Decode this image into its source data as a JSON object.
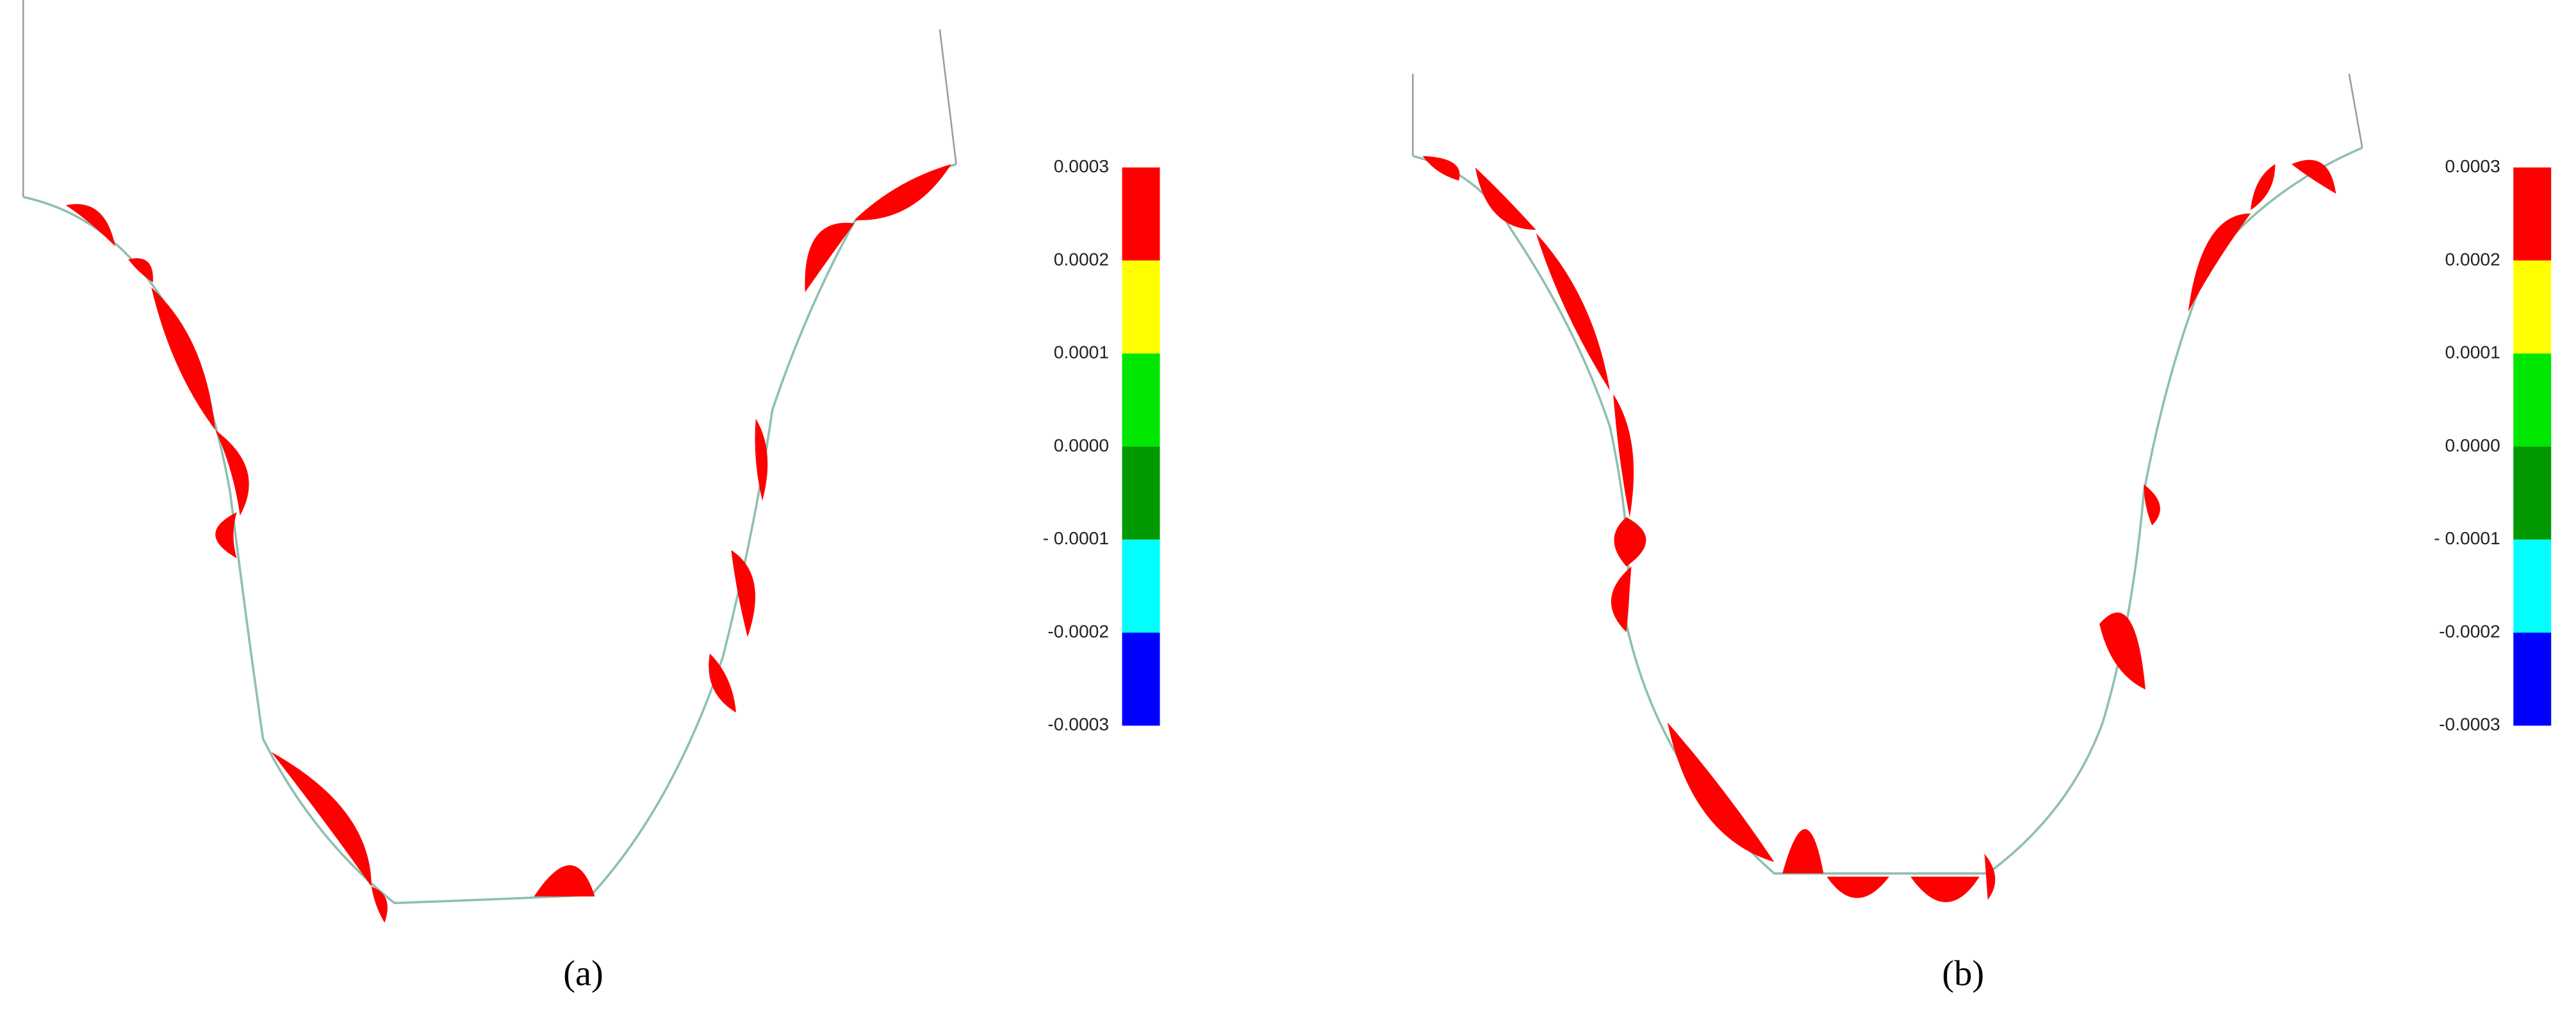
{
  "panels": [
    {
      "caption": "(a)",
      "colorbar": {
        "labels": [
          "0.0003",
          "0.0002",
          "0.0001",
          "0.0000",
          "- 0.0001",
          "-0.0002",
          "-0.0003"
        ]
      }
    },
    {
      "caption": "(b)",
      "colorbar": {
        "labels": [
          "0.0003",
          "0.0002",
          "0.0001",
          "0.0000",
          "- 0.0001",
          "-0.0002",
          "-0.0003"
        ]
      }
    }
  ],
  "colorbar_colors": [
    "#ff0000",
    "#ffff00",
    "#00e600",
    "#009900",
    "#00ffff",
    "#0000ff"
  ]
}
